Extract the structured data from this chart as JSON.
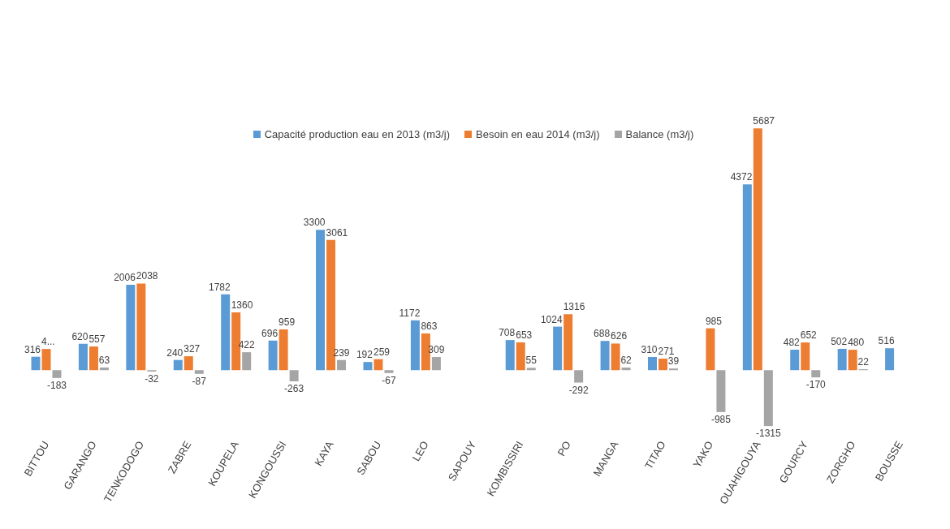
{
  "chart_data": {
    "type": "bar",
    "legend": "top",
    "categories": [
      "BITTOU",
      "GARANGO",
      "TENKODOGO",
      "ZABRE",
      "KOUPELA",
      "KONGOUSSI",
      "KAYA",
      "SABOU",
      "LEO",
      "SAPOUY",
      "KOMBISSIRI",
      "PO",
      "MANGA",
      "TITAO",
      "YAKO",
      "OUAHIGOUYA",
      "GOURCY",
      "ZORGHO",
      "BOUSSE"
    ],
    "series": [
      {
        "name": "Capacité  production eau en 2013 (m3/j)",
        "color": "#5b9bd5",
        "values": [
          316,
          620,
          2006,
          240,
          1782,
          696,
          3300,
          192,
          1172,
          null,
          708,
          1024,
          688,
          310,
          null,
          4372,
          482,
          502,
          516
        ],
        "value_labels": [
          "316",
          "620",
          "2006",
          "240",
          "1782",
          "696",
          "3300",
          "192",
          "1172",
          null,
          "708",
          "1024",
          "688",
          "310",
          null,
          "4372",
          "482",
          "502",
          "516"
        ]
      },
      {
        "name": "Besoin en eau 2014 (m3/j)",
        "color": "#ed7d31",
        "values": [
          499,
          557,
          2038,
          327,
          1360,
          959,
          3061,
          259,
          863,
          null,
          653,
          1316,
          626,
          271,
          985,
          5687,
          652,
          480,
          null
        ],
        "value_labels": [
          "4...",
          "557",
          "2038",
          "327",
          "1360",
          "959",
          "3061",
          "259",
          "863",
          null,
          "653",
          "1316",
          "626",
          "271",
          "985",
          "5687",
          "652",
          "480",
          null
        ]
      },
      {
        "name": "Balance (m3/j)",
        "color": "#a5a5a5",
        "values": [
          -183,
          63,
          -32,
          -87,
          422,
          -263,
          239,
          -67,
          309,
          null,
          55,
          -292,
          62,
          39,
          -985,
          -1315,
          -170,
          22,
          null
        ],
        "value_labels": [
          "-183",
          "63",
          "-32",
          "-87",
          "422",
          "-263",
          "239",
          "-67",
          "309",
          null,
          "55",
          "-292",
          "62",
          "39",
          "-985",
          "-1315",
          "-170",
          "22",
          null
        ]
      }
    ]
  }
}
